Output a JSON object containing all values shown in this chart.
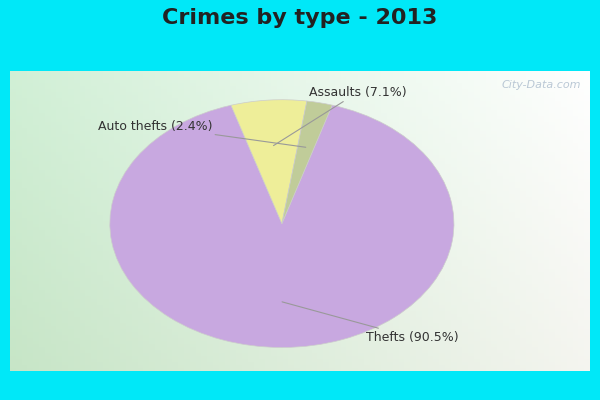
{
  "title": "Crimes by type - 2013",
  "slices": [
    {
      "label": "Thefts (90.5%)",
      "value": 90.5,
      "color": "#c8a8e0"
    },
    {
      "label": "Assaults (7.1%)",
      "value": 7.1,
      "color": "#eeee99"
    },
    {
      "label": "Auto thefts (2.4%)",
      "value": 2.4,
      "color": "#c0cc99"
    }
  ],
  "bg_cyan": "#00e8f8",
  "title_fontsize": 16,
  "label_fontsize": 9,
  "watermark": "City-Data.com",
  "startangle": 73
}
